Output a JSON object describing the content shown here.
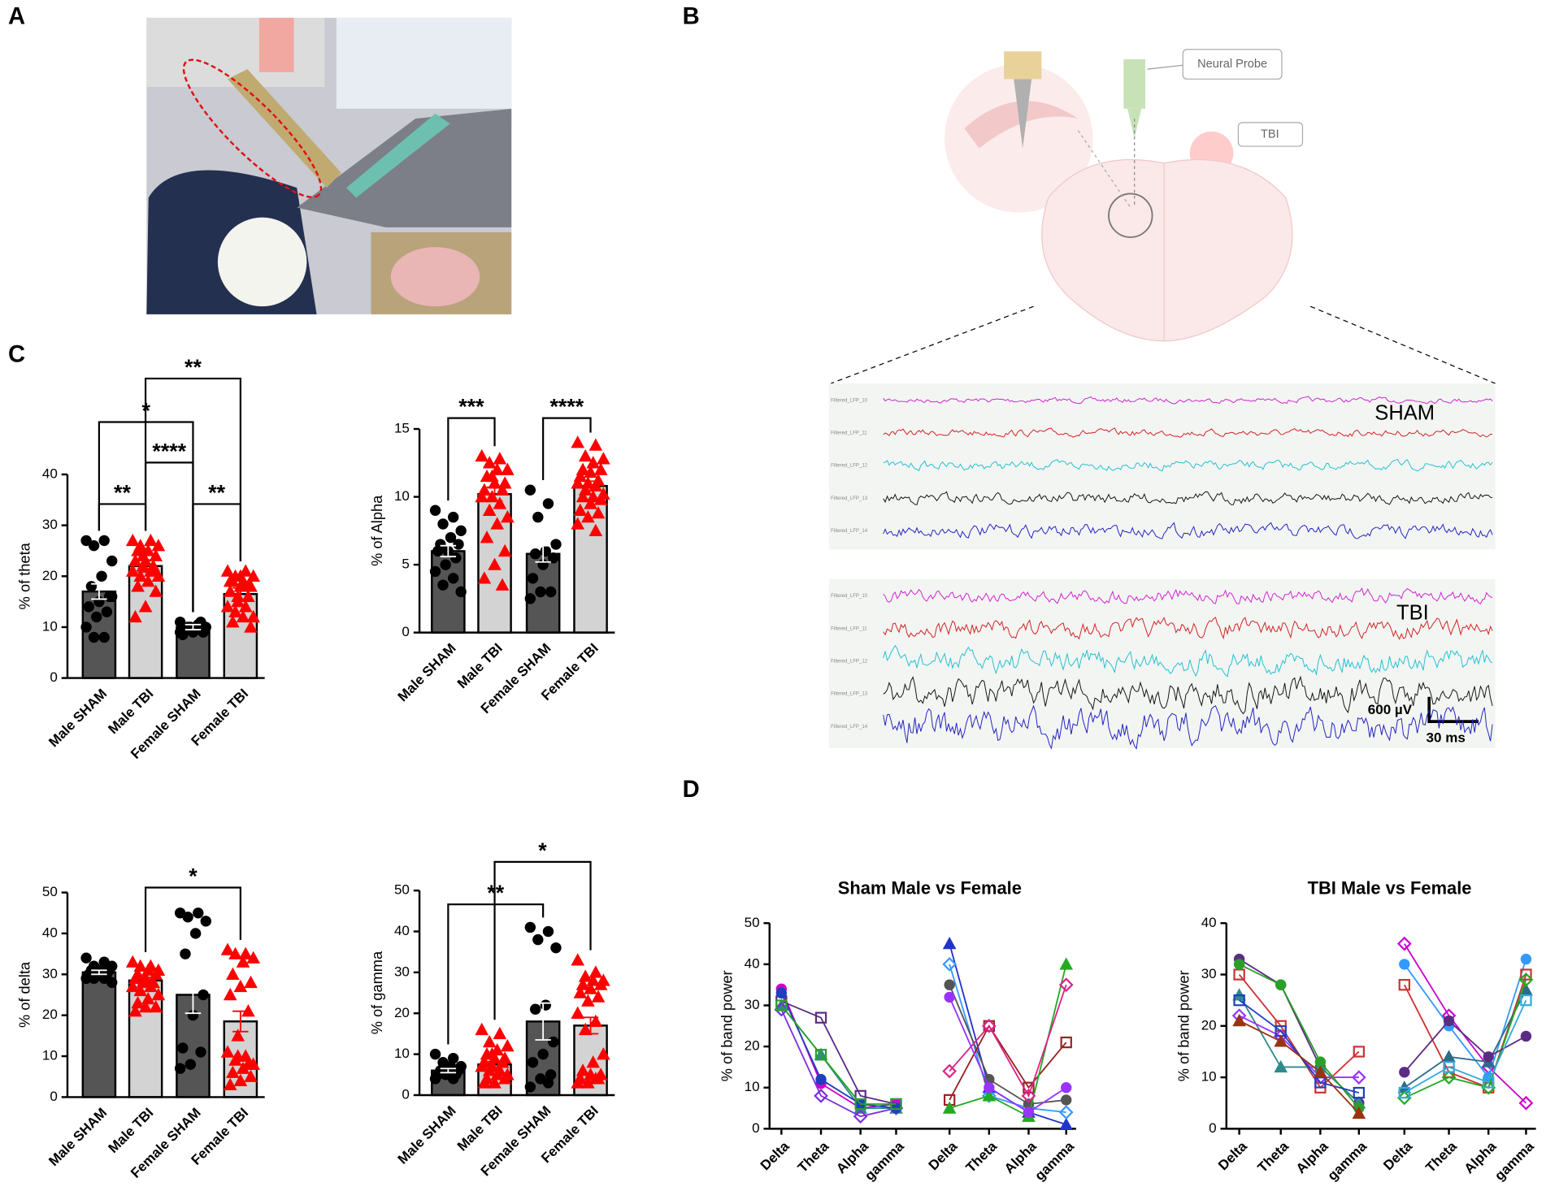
{
  "panels": [
    "A",
    "B",
    "C",
    "D"
  ],
  "diagram": {
    "probe_label": "Neural Probe",
    "tbi_label": "TBI"
  },
  "traces": {
    "sham_label": "SHAM",
    "tbi_label": "TBI",
    "channels": [
      "Filtered_LFP_10",
      "Filtered_LFP_11",
      "Filtered_LFP_12",
      "Filtered_LFP_13",
      "Filtered_LFP_14"
    ],
    "scale_voltage": "600 µV",
    "scale_time": "30 ms"
  },
  "chart_data": [
    {
      "type": "bar",
      "ylabel": "% of theta",
      "categories": [
        "Male SHAM",
        "Male TBI",
        "Female SHAM",
        "Female TBI"
      ],
      "values": [
        17,
        22,
        10,
        16.5
      ],
      "errors": [
        1.5,
        1.2,
        0.5,
        1.2
      ],
      "bar_colors": [
        "#555555",
        "#d3d3d3",
        "#555555",
        "#d3d3d3"
      ],
      "point_colors": [
        "#000000",
        "#ff0000",
        "#000000",
        "#ff0000"
      ],
      "points": [
        [
          27,
          27,
          26,
          23,
          20,
          18,
          16,
          15,
          14,
          13,
          12,
          10,
          8,
          8,
          16
        ],
        [
          27,
          27,
          26,
          26,
          25,
          25,
          24,
          23,
          23,
          22,
          22,
          21,
          21,
          20,
          20,
          19,
          18,
          17,
          14,
          12,
          21,
          24
        ],
        [
          11,
          10.5,
          10,
          10,
          9.5,
          9.5,
          9,
          9,
          8.5,
          11,
          10,
          9
        ],
        [
          21,
          21,
          20,
          20,
          19,
          19,
          18,
          18,
          17,
          16,
          15,
          14,
          14,
          13,
          12,
          12,
          11,
          10,
          20,
          19,
          18,
          16
        ]
      ],
      "ylim": [
        0,
        40
      ],
      "yticks": [
        0,
        10,
        20,
        30,
        40
      ],
      "annotations": [
        {
          "label": "**",
          "from": 0,
          "to": 1
        },
        {
          "label": "**",
          "from": 2,
          "to": 3
        },
        {
          "label": "****",
          "from": 1,
          "to": 2
        },
        {
          "label": "*",
          "from": 0,
          "to": 2
        },
        {
          "label": "**",
          "from": 1,
          "to": 3
        }
      ]
    },
    {
      "type": "bar",
      "ylabel": "% of Alpha",
      "categories": [
        "Male SHAM",
        "Male TBI",
        "Female SHAM",
        "Female TBI"
      ],
      "values": [
        6,
        10.2,
        5.8,
        10.8
      ],
      "errors": [
        0.4,
        0.5,
        0.6,
        0.35
      ],
      "bar_colors": [
        "#555555",
        "#d3d3d3",
        "#555555",
        "#d3d3d3"
      ],
      "point_colors": [
        "#000000",
        "#ff0000",
        "#000000",
        "#ff0000"
      ],
      "points": [
        [
          9,
          8.5,
          8,
          7.5,
          7,
          6.5,
          6.5,
          6,
          6,
          5.5,
          5,
          4.5,
          4,
          3.5,
          3
        ],
        [
          13,
          12.8,
          12.5,
          12,
          12,
          11.5,
          11,
          11,
          10.5,
          10.5,
          10,
          10,
          9.5,
          9,
          8.5,
          8,
          7,
          6,
          5,
          4,
          3.5,
          11.5
        ],
        [
          10.5,
          9.5,
          8.5,
          6.5,
          6,
          5.8,
          5.5,
          5,
          4,
          3,
          3,
          2.5
        ],
        [
          14,
          13.8,
          13,
          12.8,
          12.5,
          12,
          12,
          11.8,
          11.5,
          11.2,
          11,
          11,
          10.8,
          10.5,
          10.2,
          10,
          10,
          9.8,
          9.5,
          9,
          8.8,
          8.5,
          8,
          7.5
        ]
      ],
      "ylim": [
        0,
        15
      ],
      "yticks": [
        0,
        5,
        10,
        15
      ],
      "annotations": [
        {
          "label": "***",
          "from": 0,
          "to": 1
        },
        {
          "label": "****",
          "from": 2,
          "to": 3
        }
      ]
    },
    {
      "type": "bar",
      "ylabel": "% of delta",
      "categories": [
        "Male SHAM",
        "Male TBI",
        "Female SHAM",
        "Female TBI"
      ],
      "values": [
        30.5,
        28.5,
        25,
        18.5
      ],
      "errors": [
        0.5,
        0.8,
        4.5,
        2.5
      ],
      "bar_colors": [
        "#555555",
        "#d3d3d3",
        "#555555",
        "#d3d3d3"
      ],
      "point_colors": [
        "#000000",
        "#ff0000",
        "#000000",
        "#ff0000"
      ],
      "points": [
        [
          34,
          33,
          32,
          32,
          31,
          31,
          31,
          30,
          30,
          30,
          30,
          29,
          29,
          29,
          28
        ],
        [
          33,
          32,
          32,
          31,
          31,
          30,
          30,
          29,
          29,
          28,
          28,
          27,
          27,
          26,
          25,
          24,
          23,
          22,
          22,
          21
        ],
        [
          45,
          45,
          44,
          43,
          40,
          35,
          25,
          20,
          12,
          11,
          8,
          7
        ],
        [
          36,
          35,
          35,
          34,
          33,
          30,
          28,
          27,
          25,
          21,
          15,
          11,
          10,
          9,
          8,
          7,
          6,
          5,
          4,
          3,
          8,
          10
        ]
      ],
      "ylim": [
        0,
        50
      ],
      "yticks": [
        0,
        10,
        20,
        30,
        40,
        50
      ],
      "annotations": [
        {
          "label": "*",
          "from": 1,
          "to": 3
        }
      ]
    },
    {
      "type": "bar",
      "ylabel": "% of gamma",
      "categories": [
        "Male SHAM",
        "Male TBI",
        "Female SHAM",
        "Female TBI"
      ],
      "values": [
        6,
        7.5,
        18,
        17
      ],
      "errors": [
        0.5,
        0.7,
        4.5,
        2
      ],
      "bar_colors": [
        "#555555",
        "#d3d3d3",
        "#555555",
        "#d3d3d3"
      ],
      "point_colors": [
        "#000000",
        "#ff0000",
        "#000000",
        "#ff0000"
      ],
      "points": [
        [
          10,
          9,
          8,
          7,
          7,
          6,
          6,
          6,
          5,
          5,
          5,
          4,
          4,
          6,
          7
        ],
        [
          16,
          15,
          13,
          12,
          11,
          10,
          9,
          9,
          8,
          8,
          7,
          7,
          6,
          6,
          5,
          5,
          4,
          4,
          3,
          3,
          8,
          10
        ],
        [
          41,
          40,
          38,
          36,
          22,
          21,
          13,
          10,
          8,
          5,
          4,
          2,
          3
        ],
        [
          33,
          30,
          29,
          28,
          28,
          27,
          27,
          26,
          25,
          24,
          23,
          20,
          18,
          16,
          10,
          8,
          6,
          5,
          5,
          4,
          4,
          3,
          3,
          4
        ]
      ],
      "ylim": [
        0,
        50
      ],
      "yticks": [
        0,
        10,
        20,
        30,
        40,
        50
      ],
      "annotations": [
        {
          "label": "**",
          "from": 0,
          "to": 2
        },
        {
          "label": "*",
          "from": 1,
          "to": 3
        }
      ]
    },
    {
      "type": "line",
      "title": "Sham Male vs Female",
      "ylabel": "% of band power",
      "categories": [
        "Delta",
        "Theta",
        "Alpha",
        "gamma",
        "Delta",
        "Theta",
        "Alpha",
        "gamma"
      ],
      "ylim": [
        0,
        50
      ],
      "yticks": [
        0,
        10,
        20,
        30,
        40,
        50
      ],
      "series": [
        {
          "color": "#cc00cc",
          "values": [
            34,
            11,
            5,
            6,
            null,
            null,
            null,
            null
          ]
        },
        {
          "color": "#5b2c83",
          "values": [
            31,
            27,
            8,
            6,
            null,
            null,
            null,
            null
          ]
        },
        {
          "color": "#2e8b8b",
          "values": [
            30,
            18,
            5,
            5,
            null,
            null,
            null,
            null
          ]
        },
        {
          "color": "#7b2fe0",
          "values": [
            29,
            8,
            3,
            5,
            null,
            null,
            null,
            null
          ]
        },
        {
          "color": "#1f3fbf",
          "values": [
            33,
            12,
            6,
            5,
            null,
            null,
            null,
            null
          ]
        },
        {
          "color": "#2aa02a",
          "values": [
            30,
            18,
            6,
            6,
            null,
            null,
            null,
            null
          ]
        },
        {
          "color": "#2233cc",
          "values": [
            null,
            null,
            null,
            null,
            45,
            10,
            4,
            1
          ]
        },
        {
          "color": "#3399ff",
          "values": [
            null,
            null,
            null,
            null,
            40,
            8,
            5,
            4
          ]
        },
        {
          "color": "#555555",
          "values": [
            null,
            null,
            null,
            null,
            35,
            12,
            6,
            7
          ]
        },
        {
          "color": "#992222",
          "values": [
            null,
            null,
            null,
            null,
            7,
            25,
            10,
            21
          ]
        },
        {
          "color": "#22aa22",
          "values": [
            null,
            null,
            null,
            null,
            5,
            8,
            3,
            40
          ]
        },
        {
          "color": "#dd2288",
          "values": [
            null,
            null,
            null,
            null,
            14,
            25,
            8,
            35
          ]
        },
        {
          "color": "#9933ff",
          "values": [
            null,
            null,
            null,
            null,
            32,
            10,
            4,
            10
          ]
        }
      ]
    },
    {
      "type": "line",
      "title": "TBI Male vs Female",
      "ylabel": "% of band power",
      "categories": [
        "Delta",
        "Theta",
        "Alpha",
        "gamma",
        "Delta",
        "Theta",
        "Alpha",
        "gamma"
      ],
      "ylim": [
        0,
        40
      ],
      "yticks": [
        0,
        10,
        20,
        30,
        40
      ],
      "series": [
        {
          "color": "#5b2c83",
          "values": [
            33,
            28,
            12,
            5,
            null,
            null,
            null,
            null
          ]
        },
        {
          "color": "#cc3333",
          "values": [
            30,
            20,
            8,
            15,
            null,
            null,
            null,
            null
          ]
        },
        {
          "color": "#2e8b8b",
          "values": [
            26,
            12,
            12,
            5,
            null,
            null,
            null,
            null
          ]
        },
        {
          "color": "#9933ff",
          "values": [
            22,
            18,
            10,
            10,
            null,
            null,
            null,
            null
          ]
        },
        {
          "color": "#2aa02a",
          "values": [
            32,
            28,
            13,
            4,
            null,
            null,
            null,
            null
          ]
        },
        {
          "color": "#1f3fbf",
          "values": [
            25,
            19,
            9,
            7,
            null,
            null,
            null,
            null
          ]
        },
        {
          "color": "#993311",
          "values": [
            21,
            17,
            11,
            3,
            null,
            null,
            null,
            null
          ]
        },
        {
          "color": "#cc00cc",
          "values": [
            null,
            null,
            null,
            null,
            36,
            22,
            12,
            5
          ]
        },
        {
          "color": "#3399ff",
          "values": [
            null,
            null,
            null,
            null,
            32,
            20,
            10,
            33
          ]
        },
        {
          "color": "#cc3333",
          "values": [
            null,
            null,
            null,
            null,
            28,
            11,
            8,
            30
          ]
        },
        {
          "color": "#2e6b8b",
          "values": [
            null,
            null,
            null,
            null,
            8,
            14,
            13,
            27
          ]
        },
        {
          "color": "#22aa22",
          "values": [
            null,
            null,
            null,
            null,
            6,
            10,
            8,
            29
          ]
        },
        {
          "color": "#5b2c83",
          "values": [
            null,
            null,
            null,
            null,
            11,
            21,
            14,
            18
          ]
        },
        {
          "color": "#33aadd",
          "values": [
            null,
            null,
            null,
            null,
            7,
            12,
            9,
            25
          ]
        }
      ]
    }
  ]
}
